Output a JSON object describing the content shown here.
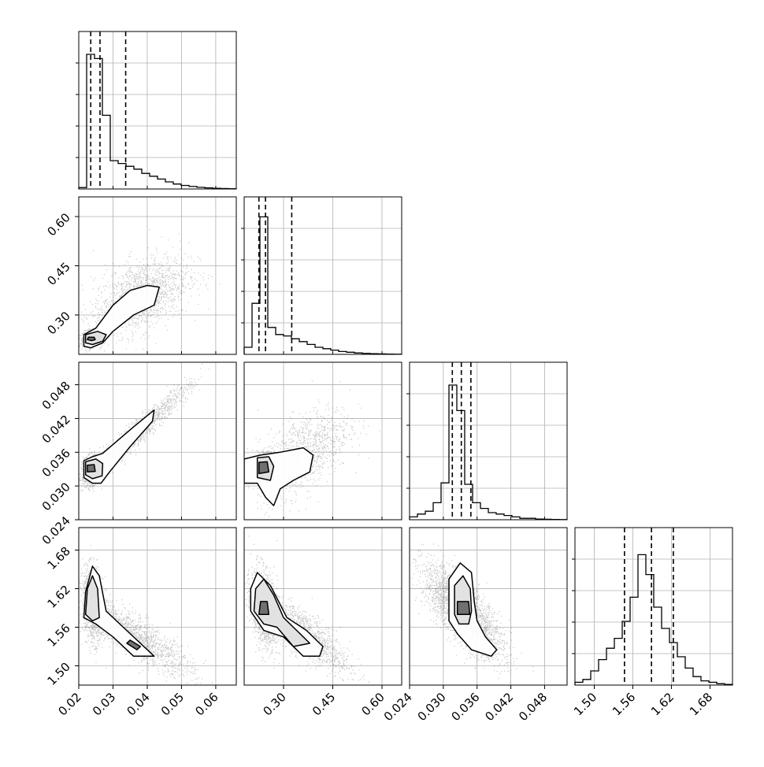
{
  "chart_data": {
    "type": "scatter",
    "subtype": "corner-plot",
    "title": "",
    "parameters": [
      {
        "range": [
          0.02,
          0.066
        ],
        "ticks": [
          0.02,
          0.03,
          0.04,
          0.05,
          0.06
        ],
        "tick_labels": [
          "0.02",
          "0.03",
          "0.04",
          "0.05",
          "0.06"
        ],
        "quantiles": [
          0.0235,
          0.0262,
          0.0337
        ]
      },
      {
        "range": [
          0.18,
          0.66
        ],
        "ticks": [
          0.3,
          0.45,
          0.6
        ],
        "tick_labels": [
          "0.30",
          "0.45",
          "0.60"
        ],
        "quantiles": [
          0.225,
          0.245,
          0.325
        ]
      },
      {
        "range": [
          0.024,
          0.052
        ],
        "ticks": [
          0.024,
          0.03,
          0.036,
          0.042,
          0.048
        ],
        "tick_labels": [
          "0.024",
          "0.030",
          "0.036",
          "0.042",
          "0.048"
        ],
        "quantiles": [
          0.0316,
          0.0332,
          0.0349
        ]
      },
      {
        "range": [
          1.47,
          1.715
        ],
        "ticks": [
          1.5,
          1.56,
          1.62,
          1.68
        ],
        "tick_labels": [
          "1.50",
          "1.56",
          "1.62",
          "1.68"
        ],
        "quantiles": [
          1.547,
          1.589,
          1.623
        ]
      }
    ],
    "histograms": [
      [
        0.01,
        0.95,
        0.92,
        0.52,
        0.2,
        0.18,
        0.16,
        0.14,
        0.11,
        0.09,
        0.07,
        0.05,
        0.035,
        0.025,
        0.018,
        0.012,
        0.008,
        0.005,
        0.003,
        0.002
      ],
      [
        0.05,
        0.36,
        0.97,
        0.19,
        0.14,
        0.13,
        0.11,
        0.09,
        0.07,
        0.05,
        0.04,
        0.03,
        0.02,
        0.015,
        0.01,
        0.007,
        0.005,
        0.003,
        0.002,
        0.001
      ],
      [
        0.02,
        0.04,
        0.06,
        0.12,
        0.26,
        0.95,
        0.77,
        0.25,
        0.12,
        0.08,
        0.05,
        0.04,
        0.03,
        0.02,
        0.01,
        0.01,
        0.005,
        0.003,
        0.002,
        0.001
      ],
      [
        0.02,
        0.04,
        0.1,
        0.18,
        0.26,
        0.33,
        0.45,
        0.62,
        0.92,
        0.78,
        0.55,
        0.4,
        0.3,
        0.2,
        0.12,
        0.06,
        0.03,
        0.02,
        0.01,
        0.005
      ]
    ],
    "grid": true,
    "annotations": []
  }
}
